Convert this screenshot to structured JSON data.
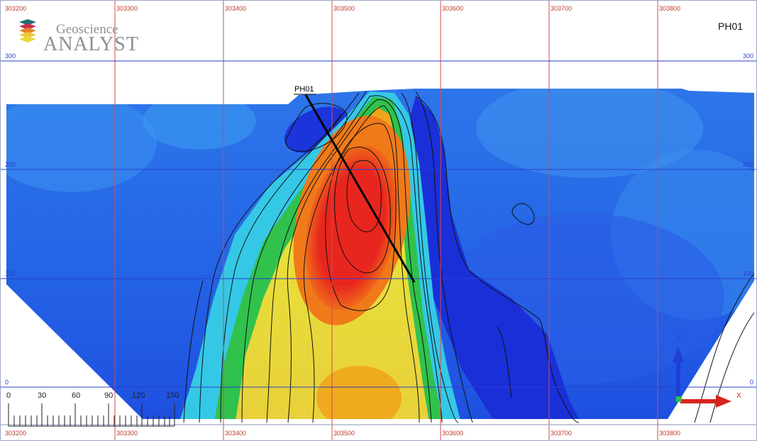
{
  "app": {
    "logo_word_top": "Geoscience",
    "logo_word_bottom": "ANALYST"
  },
  "section": {
    "title": "PH01",
    "drillhole_label": "PH01"
  },
  "easting_ticks": [
    "303200",
    "303300",
    "303400",
    "303500",
    "303600",
    "303700",
    "303800"
  ],
  "elevation_ticks_left": [
    "300",
    "200",
    "100",
    "0"
  ],
  "elevation_ticks_right": [
    "300",
    "200",
    "100",
    "0"
  ],
  "scale_bar": {
    "labels": [
      "0",
      "30",
      "60",
      "90",
      "120",
      "150"
    ]
  },
  "axes": {
    "z_label": "Z",
    "x_label": "X"
  },
  "colors": {
    "low": "#1f3fe6",
    "mid_low": "#31c6e6",
    "mid": "#2fc24a",
    "mid_high": "#e8e33a",
    "high": "#e8261f",
    "grid_easting": "#d44a4a",
    "grid_elevation": "#2b3fcf"
  }
}
